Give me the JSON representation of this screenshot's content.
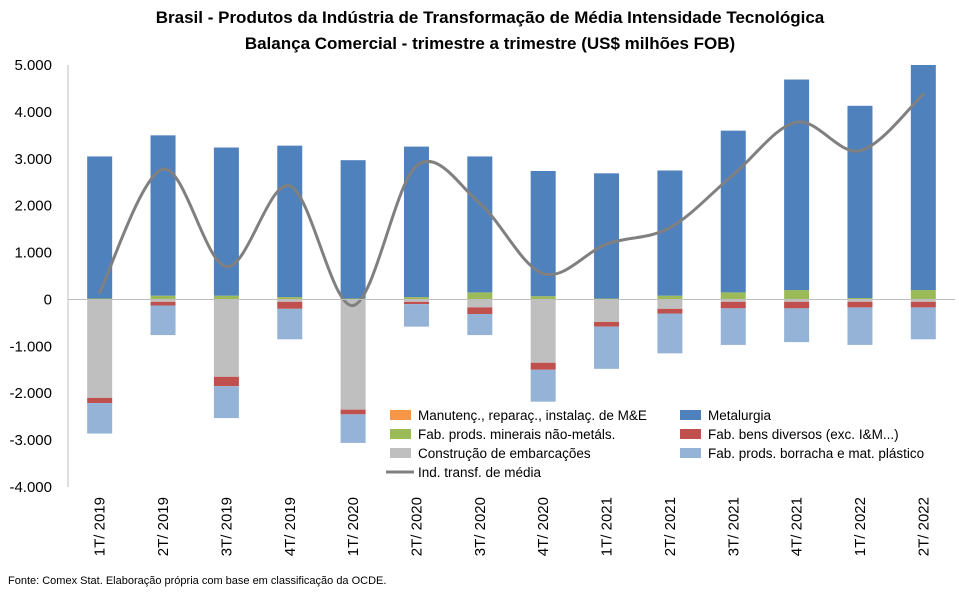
{
  "chart_data": {
    "type": "bar",
    "stacked": true,
    "title": "Brasil - Produtos da Indústria de Transformação de Média Intensidade Tecnológica",
    "subtitle": "Balança Comercial - trimestre a trimestre (US$ milhões FOB)",
    "xlabel": "",
    "ylabel": "",
    "ylim": [
      -4000,
      5000
    ],
    "yticks": [
      "-4.000",
      "-3.000",
      "-2.000",
      "-1.000",
      "0",
      "1.000",
      "2.000",
      "3.000",
      "4.000",
      "5.000"
    ],
    "ytick_values": [
      -4000,
      -3000,
      -2000,
      -1000,
      0,
      1000,
      2000,
      3000,
      4000,
      5000
    ],
    "grid": false,
    "legend_position": "bottom-right",
    "categories": [
      "1T/ 2019",
      "2T/ 2019",
      "3T/ 2019",
      "4T/ 2019",
      "1T/ 2020",
      "2T/ 2020",
      "3T/ 2020",
      "4T/ 2020",
      "1T/ 2021",
      "2T/ 2021",
      "3T/ 2021",
      "4T/ 2021",
      "1T/ 2022",
      "2T/ 2022"
    ],
    "series": [
      {
        "name": "Manutenç., reparaç., instalaç. de M&E",
        "color": "#F79646",
        "values": [
          0,
          0,
          0,
          0,
          0,
          0,
          0,
          0,
          0,
          0,
          0,
          0,
          0,
          0
        ]
      },
      {
        "name": "Fab. prods. minerais não-metáls.",
        "color": "#9BBB59",
        "values": [
          20,
          80,
          80,
          50,
          20,
          50,
          150,
          70,
          20,
          80,
          150,
          200,
          30,
          200
        ]
      },
      {
        "name": "Construção de embarcações",
        "color": "#BFBFBF",
        "values": [
          -2100,
          -50,
          -1650,
          -50,
          -2350,
          -50,
          -170,
          -1350,
          -480,
          -200,
          -50,
          -50,
          -50,
          -50
        ]
      },
      {
        "name": "Metalurgia",
        "color": "#4F81BD",
        "values": [
          3030,
          3420,
          3160,
          3230,
          2950,
          3210,
          2900,
          2670,
          2670,
          2670,
          3450,
          4490,
          4100,
          4800
        ]
      },
      {
        "name": "Fab. bens diversos (exc. I&M...)",
        "color": "#C0504D",
        "values": [
          -110,
          -80,
          -200,
          -150,
          -100,
          -50,
          -140,
          -150,
          -100,
          -100,
          -140,
          -140,
          -120,
          -120
        ]
      },
      {
        "name": "Fab. prods. borracha e mat. plástico",
        "color": "#95B3D7",
        "values": [
          -650,
          -630,
          -680,
          -650,
          -610,
          -480,
          -450,
          -680,
          -900,
          -850,
          -780,
          -720,
          -800,
          -680
        ]
      },
      {
        "name": "Ind. transf. de média",
        "color": "#808080",
        "type": "line",
        "values": [
          150,
          2780,
          700,
          2420,
          -130,
          2850,
          2050,
          550,
          1180,
          1530,
          2660,
          3780,
          3170,
          4380
        ]
      }
    ]
  },
  "footer": {
    "source": "Fonte: Comex Stat. Elaboração própria com base em classificação da OCDE."
  }
}
